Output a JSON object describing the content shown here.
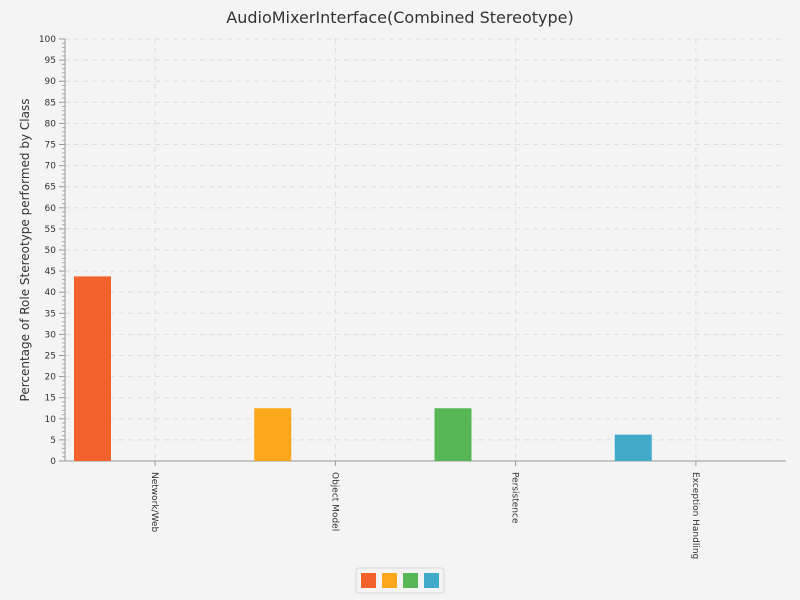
{
  "chart_data": {
    "type": "bar",
    "title": "AudioMixerInterface(Combined Stereotype)",
    "xlabel": "",
    "ylabel": "Percentage of Role Stereotype performed by Class",
    "ylim": [
      0,
      100
    ],
    "ytick_step": 5,
    "grid": true,
    "legend_position": "bottom-center",
    "categories": [
      "Network/Web",
      "Object Model",
      "Persistence",
      "Exception Handling"
    ],
    "values": [
      43.75,
      12.5,
      12.5,
      6.25
    ],
    "colors": [
      "#f3622d",
      "#fba71b",
      "#57b757",
      "#41a9c9"
    ]
  }
}
